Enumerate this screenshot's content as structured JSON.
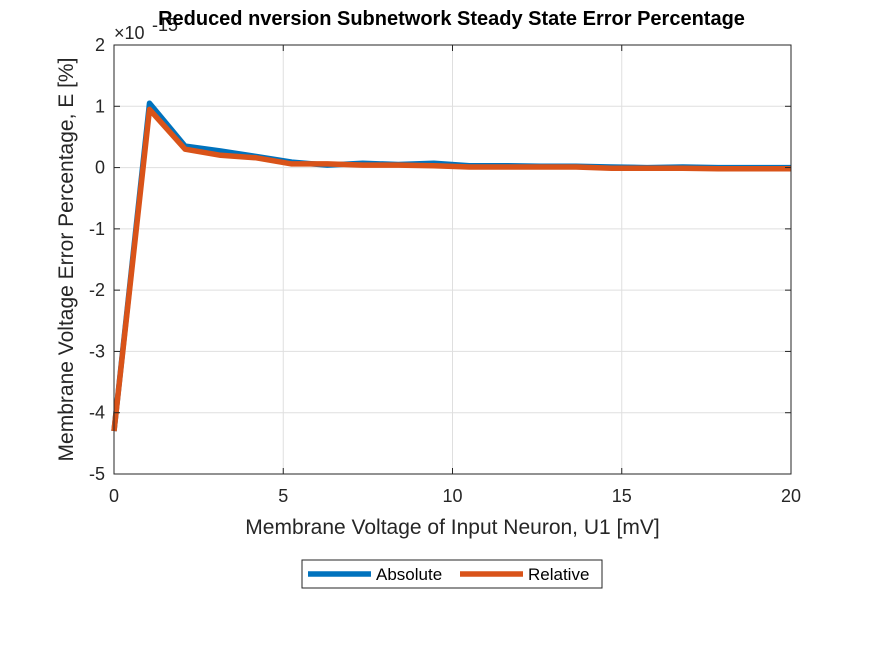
{
  "chart_data": {
    "type": "line",
    "title": "Reduced nversion Subnetwork Steady State Error Percentage",
    "exponent_label": "×10",
    "exponent_power": "-15",
    "xlabel": "Membrane Voltage of Input Neuron, U1 [mV]",
    "ylabel": "Membrane Voltage Error Percentage, E [%]",
    "xlim": [
      0,
      20
    ],
    "ylim": [
      -5,
      2
    ],
    "xticks": [
      0,
      5,
      10,
      15,
      20
    ],
    "xtick_labels": [
      "0",
      "5",
      "10",
      "15",
      "20"
    ],
    "yticks": [
      -5,
      -4,
      -3,
      -2,
      -1,
      0,
      1,
      2
    ],
    "ytick_labels": [
      "-5",
      "-4",
      "-3",
      "-2",
      "-1",
      "0",
      "1",
      "2"
    ],
    "grid": true,
    "legend_position": "bottom-outside",
    "series": [
      {
        "name": "Absolute",
        "color": "#0072BD",
        "x": [
          0,
          1.05,
          2.1,
          3.15,
          4.2,
          5.25,
          6.3,
          7.35,
          8.4,
          9.45,
          10.5,
          11.55,
          12.6,
          13.65,
          14.7,
          15.75,
          16.8,
          17.85,
          18.9,
          20
        ],
        "y": [
          -4.3,
          1.05,
          0.35,
          0.27,
          0.18,
          0.09,
          0.04,
          0.07,
          0.05,
          0.07,
          0.03,
          0.03,
          0.02,
          0.02,
          0.01,
          0.0,
          0.01,
          0.0,
          0.0,
          0.0
        ]
      },
      {
        "name": "Relative",
        "color": "#D95319",
        "x": [
          0,
          1.05,
          2.1,
          3.15,
          4.2,
          5.25,
          6.3,
          7.35,
          8.4,
          9.45,
          10.5,
          11.55,
          12.6,
          13.65,
          14.7,
          15.75,
          16.8,
          17.85,
          18.9,
          20
        ],
        "y": [
          -4.3,
          0.95,
          0.3,
          0.2,
          0.16,
          0.06,
          0.06,
          0.04,
          0.04,
          0.03,
          0.01,
          0.01,
          0.01,
          0.01,
          -0.01,
          -0.01,
          -0.01,
          -0.02,
          -0.02,
          -0.02
        ]
      }
    ]
  }
}
